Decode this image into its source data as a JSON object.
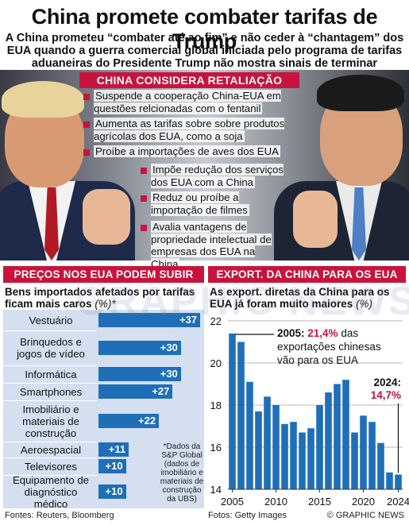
{
  "headline": "China promete combater tarifas de Trump",
  "deck": "A China prometeu “combater até ao fim” e não ceder à “chantagem” dos EUA quando a guerra comercial global iniciada pelo programa de tarifas aduaneiras do Presidente Trump não mostra sinais de terminar",
  "retaliation": {
    "title": "CHINA CONSIDERA RETALIAÇÃO",
    "items": [
      "Suspende a cooperação China-EUA em questões relcionadas com o fentanil",
      "Aumenta as tarifas sobre sobre produtos agrícolas dos EUA, como a soja",
      "Proíbe a importações de aves dos EUA",
      "Impõe redução dos serviços dos EUA com a China",
      "Reduz ou proíbe a importação de filmes",
      "Avalia vantagens de propriedade intelectual de empresas dos EUA na China"
    ]
  },
  "left": {
    "header": "PREÇOS NOS EUA PODEM SUBIR",
    "subtitle": "Bens importados afetados por tarifas ficam mais caros",
    "unit": "(%)*",
    "footnote": "*Dados da S&P Global (dados de imobiliário e materiais de construção da UBS)"
  },
  "right": {
    "header": "EXPORT. DA CHINA PARA OS EUA",
    "subtitle": "As export. diretas da China para os EUA já foram muito maiores",
    "unit": "(%)",
    "ann2005_year": "2005:",
    "ann2005_value": "21,4%",
    "ann2005_rest": "das exportações chinesas vão para os EUA",
    "ann2024_year": "2024:",
    "ann2024_value": "14,7%"
  },
  "footer": {
    "sources": "Fontes: Reuters, Bloomberg",
    "photos": "Fotos: Getty Images",
    "credit": "© GRAPHIC NEWS"
  },
  "watermark": "GRAPHIC NEWS",
  "colors": {
    "accent": "#c8143c",
    "bar": "#1f6fb8",
    "panel": "#d4e0f0"
  },
  "chart_data": [
    {
      "type": "bar",
      "orientation": "horizontal",
      "categories": [
        "Vestuário",
        "Brinquedos e jogos de vídeo",
        "Informática",
        "Smartphones",
        "Imobiliário e materiais de construção",
        "Aeroespacial",
        "Televisores",
        "Equipamento de diagnóstico médico"
      ],
      "values": [
        37,
        30,
        30,
        27,
        22,
        11,
        10,
        10
      ],
      "labels": [
        "+37",
        "+30",
        "+30",
        "+27",
        "+22",
        "+11",
        "+10",
        "+10"
      ],
      "xlim": [
        0,
        37
      ]
    },
    {
      "type": "bar",
      "x": [
        2005,
        2006,
        2007,
        2008,
        2009,
        2010,
        2011,
        2012,
        2013,
        2014,
        2015,
        2016,
        2017,
        2018,
        2019,
        2020,
        2021,
        2022,
        2023,
        2024
      ],
      "values": [
        21.4,
        21.0,
        19.1,
        17.7,
        18.4,
        18.0,
        17.1,
        17.2,
        16.7,
        16.9,
        18.0,
        18.6,
        19.0,
        19.2,
        16.7,
        17.5,
        17.2,
        16.2,
        14.8,
        14.7
      ],
      "xticks": [
        "2005",
        "2010",
        "2015",
        "2020",
        "2024"
      ],
      "yticks": [
        "14",
        "16",
        "18",
        "20",
        "22"
      ],
      "ylim": [
        14,
        22
      ],
      "grid": true
    }
  ]
}
